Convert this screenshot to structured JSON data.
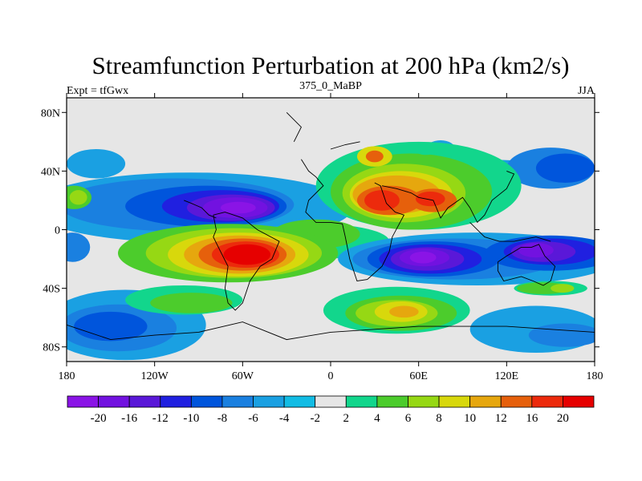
{
  "chart_data": {
    "type": "heatmap",
    "title": "Streamfunction Perturbation at 200 hPa (km2/s)",
    "left_label": "Expt = tfGwx",
    "center_label": "375_0_MaBP",
    "right_label": "JJA",
    "x_ticks": [
      "180",
      "120W",
      "60W",
      "0",
      "60E",
      "120E",
      "180"
    ],
    "y_ticks": [
      "80N",
      "40N",
      "0",
      "40S",
      "80S"
    ],
    "xlim": [
      -180,
      180
    ],
    "ylim": [
      -90,
      90
    ],
    "colorbar": {
      "labels": [
        "-20",
        "-16",
        "-12",
        "-10",
        "-8",
        "-6",
        "-4",
        "-2",
        "2",
        "4",
        "6",
        "8",
        "10",
        "12",
        "16",
        "20"
      ],
      "colors": [
        "#8a14e6",
        "#7212e0",
        "#5a18d8",
        "#2020e0",
        "#0055dc",
        "#1a80e0",
        "#1aa0e2",
        "#12bce4",
        "#e6e6e6",
        "#12d68c",
        "#4ccc2c",
        "#96d814",
        "#d8d80c",
        "#e6a70e",
        "#e6600c",
        "#ec2a0c",
        "#e60000"
      ]
    },
    "features": [
      {
        "name": "north-atlantic-low",
        "lon": -65,
        "lat": 15,
        "value": -20
      },
      {
        "name": "south-atlantic-high",
        "lon": -60,
        "lat": -17,
        "value": 20
      },
      {
        "name": "indian-ocean-low",
        "lon": 65,
        "lat": -20,
        "value": -20
      },
      {
        "name": "mideast-high",
        "lon": 50,
        "lat": 20,
        "value": 16
      },
      {
        "name": "tibet-high",
        "lon": 65,
        "lat": 22,
        "value": 16
      },
      {
        "name": "south-pacific-low",
        "lon": 140,
        "lat": -15,
        "value": -16
      },
      {
        "name": "southern-high",
        "lon": 50,
        "lat": -55,
        "value": 10
      }
    ]
  }
}
